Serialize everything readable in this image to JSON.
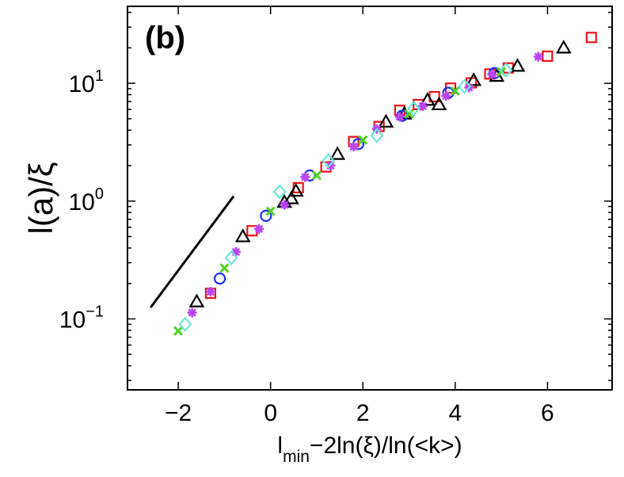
{
  "chart_data": {
    "type": "scatter",
    "panel_label": "(b)",
    "title": "",
    "xlabel": {
      "main": "l",
      "sub": "min",
      "rest": "−2ln(ξ)/ln(<k>)"
    },
    "ylabel": "l(a)/ξ",
    "xlim": [
      -3.1,
      7.4
    ],
    "ylim": [
      0.025,
      45
    ],
    "y_scale": "log",
    "grid": false,
    "legend": "none",
    "x_ticks": [
      {
        "value": -2,
        "label": "−2"
      },
      {
        "value": 0,
        "label": "0"
      },
      {
        "value": 2,
        "label": "2"
      },
      {
        "value": 4,
        "label": "4"
      },
      {
        "value": 6,
        "label": "6"
      }
    ],
    "y_ticks": [
      {
        "value": 0.1,
        "base": "10",
        "exp": "−1"
      },
      {
        "value": 1,
        "base": "10",
        "exp": "0"
      },
      {
        "value": 10,
        "base": "10",
        "exp": "1"
      }
    ],
    "reference_line": {
      "x": [
        -2.6,
        -0.8
      ],
      "y": [
        0.125,
        1.1
      ],
      "color": "#000000"
    },
    "series": [
      {
        "name": "squares",
        "marker": "square",
        "color": "#e8141a",
        "x": [
          -1.3,
          -0.4,
          0.6,
          1.2,
          1.8,
          2.35,
          2.8,
          3.2,
          3.55,
          3.9,
          4.35,
          4.75,
          5.15,
          6.0,
          6.95
        ],
        "y": [
          0.165,
          0.56,
          1.3,
          1.95,
          3.2,
          4.3,
          5.9,
          6.6,
          7.7,
          9.1,
          10.1,
          12.0,
          13.5,
          17.0,
          24.5
        ]
      },
      {
        "name": "triangles",
        "marker": "triangle",
        "color": "#000000",
        "x": [
          -1.6,
          -0.6,
          0.3,
          0.45,
          0.55,
          1.45,
          2.5,
          2.9,
          3.4,
          3.65,
          4.4,
          4.9,
          5.35,
          6.35
        ],
        "y": [
          0.14,
          0.5,
          0.98,
          1.05,
          1.22,
          2.5,
          4.7,
          5.5,
          7.2,
          6.6,
          10.6,
          11.5,
          14.0,
          20.0
        ]
      },
      {
        "name": "circles",
        "marker": "circle",
        "color": "#1c2ff0",
        "x": [
          -1.1,
          -0.1,
          0.85,
          1.9,
          2.85,
          3.85,
          4.85
        ],
        "y": [
          0.22,
          0.75,
          1.65,
          3.05,
          5.3,
          8.3,
          12.2
        ]
      },
      {
        "name": "stars",
        "marker": "star",
        "color": "#b944f0",
        "x": [
          -1.7,
          -1.3,
          -0.75,
          -0.25,
          0.3,
          0.75,
          1.3,
          1.8,
          2.3,
          2.8,
          3.3,
          3.8,
          4.3,
          4.8,
          5.8
        ],
        "y": [
          0.113,
          0.17,
          0.37,
          0.58,
          0.93,
          1.6,
          2.0,
          2.9,
          4.1,
          5.2,
          6.4,
          7.8,
          9.2,
          11.9,
          16.8
        ]
      },
      {
        "name": "crosses",
        "marker": "x",
        "color": "#4fd422",
        "x": [
          -2.0,
          -1.0,
          0.0,
          1.0,
          2.0,
          3.0,
          4.0,
          5.0
        ],
        "y": [
          0.079,
          0.27,
          0.82,
          1.65,
          3.3,
          5.5,
          8.6,
          12.5
        ]
      },
      {
        "name": "diamonds",
        "marker": "diamond",
        "color": "#6fe7d9",
        "x": [
          -1.85,
          -0.85,
          0.2,
          1.25,
          2.3,
          3.1,
          4.2,
          5.1
        ],
        "y": [
          0.09,
          0.33,
          1.2,
          2.2,
          3.6,
          6.1,
          9.4,
          12.9
        ]
      }
    ]
  }
}
